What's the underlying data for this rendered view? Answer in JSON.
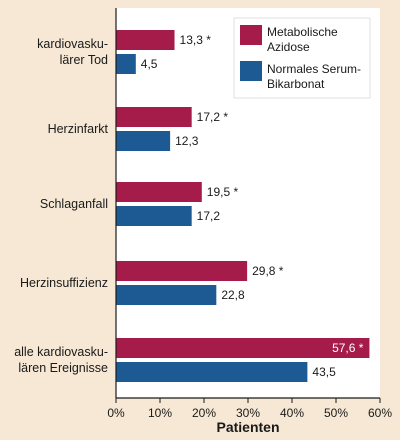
{
  "chart_data": {
    "type": "bar",
    "orientation": "horizontal",
    "categories": [
      [
        "kardiovasku-",
        "lärer Tod"
      ],
      [
        "Herzinfarkt"
      ],
      [
        "Schlaganfall"
      ],
      [
        "Herzinsuffizienz"
      ],
      [
        "alle kardiovasku-",
        "lären Ereignisse"
      ]
    ],
    "series": [
      {
        "name": [
          "Metabolische",
          "Azidose"
        ],
        "color": "#a51c4a",
        "values": [
          13.3,
          17.2,
          19.5,
          29.8,
          57.6
        ],
        "labels": [
          "13,3 *",
          "17,2 *",
          "19,5 *",
          "29,8 *",
          "57,6 *"
        ]
      },
      {
        "name": [
          "Normales Serum-",
          "Bikarbonat"
        ],
        "color": "#1d5a94",
        "values": [
          4.5,
          12.3,
          17.2,
          22.8,
          43.5
        ],
        "labels": [
          "4,5",
          "12,3",
          "17,2",
          "22,8",
          "43,5"
        ]
      }
    ],
    "xlabel": "Patienten",
    "xlim": [
      0,
      60
    ],
    "xticks": [
      "0%",
      "10%",
      "20%",
      "30%",
      "40%",
      "50%",
      "60%"
    ],
    "legend_position": "top-right",
    "grid": false
  }
}
